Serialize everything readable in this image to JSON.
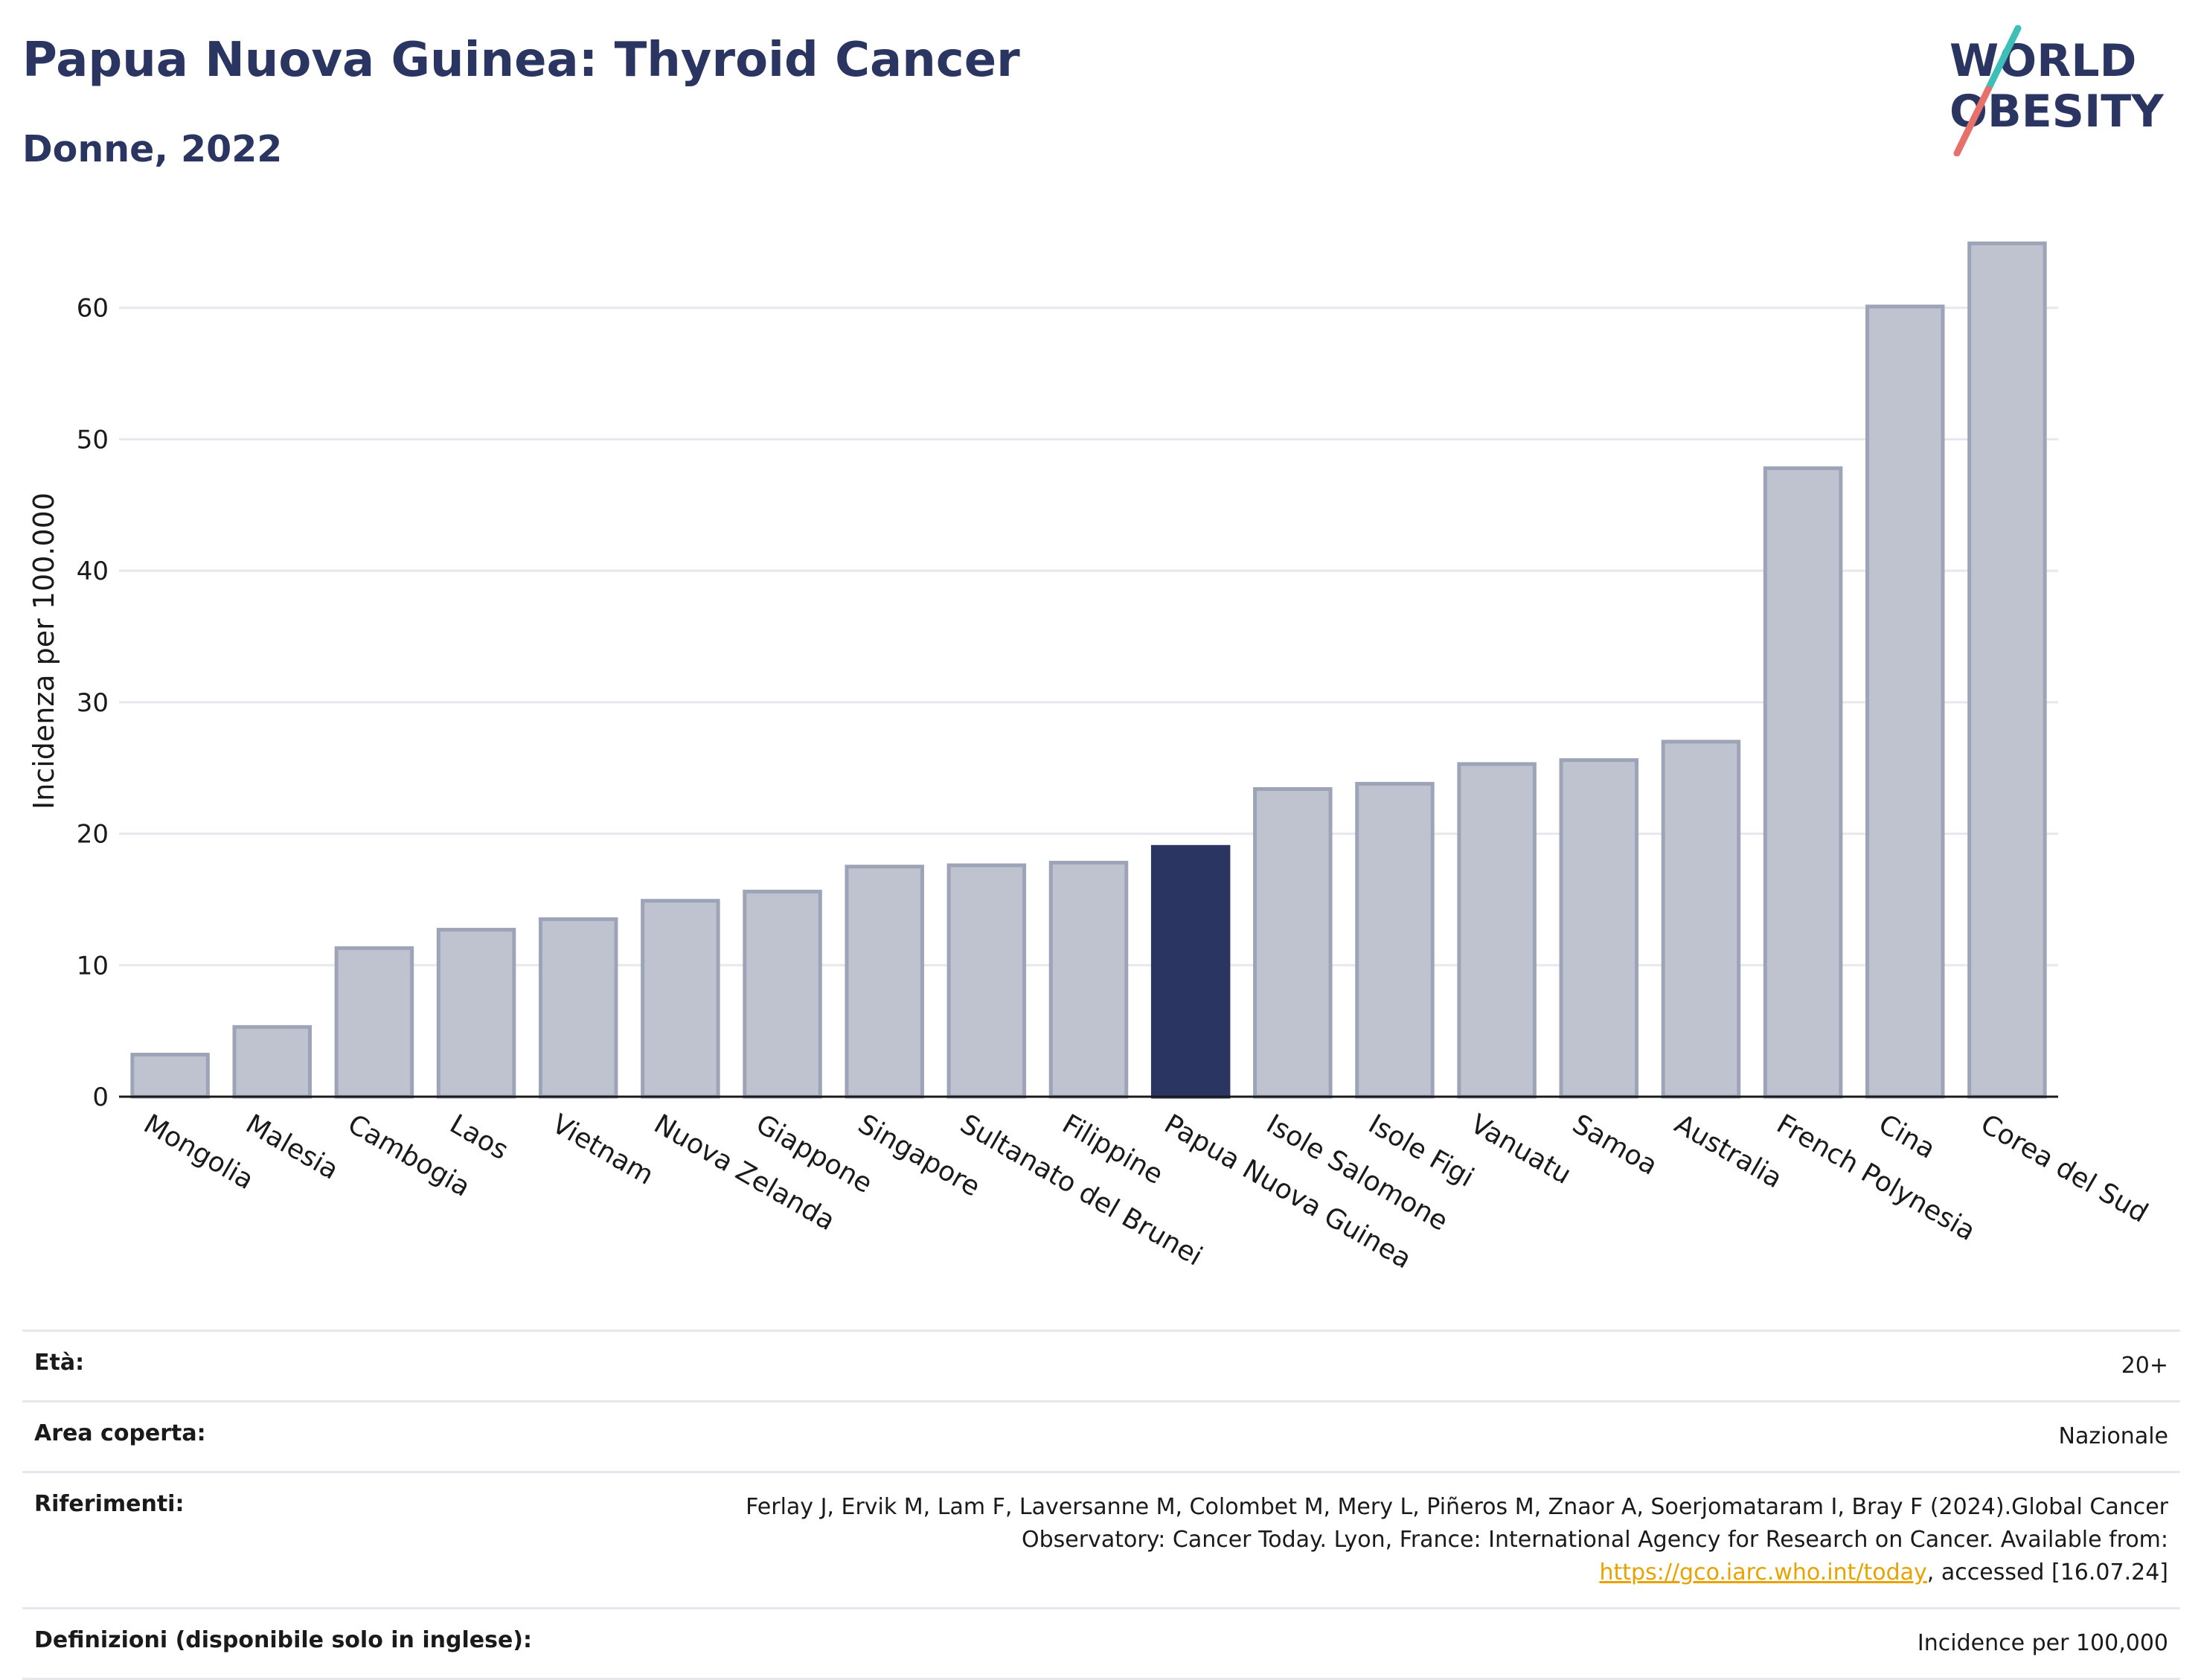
{
  "header": {
    "title": "Papua Nuova Guinea: Thyroid Cancer",
    "subtitle": "Donne, 2022"
  },
  "logo": {
    "line1": "WORLD",
    "line2": "OBESITY",
    "colors": {
      "text": "#2a3561",
      "slash_teal": "#3dbfb8",
      "slash_coral": "#e8706a"
    }
  },
  "colors": {
    "highlight_bar": "#2a3561",
    "other_bar_fill": "#bfc3cf",
    "other_bar_stroke": "#9ea4b8",
    "axis": "#1a1a1a",
    "grid": "#e6e8ee",
    "title": "#2a3561"
  },
  "chart_data": {
    "type": "bar",
    "title": "Papua Nuova Guinea: Thyroid Cancer",
    "subtitle": "Donne, 2022",
    "xlabel": "",
    "ylabel": "Incidenza per 100.000",
    "ylim": [
      0,
      67
    ],
    "yticks": [
      0,
      10,
      20,
      30,
      40,
      50,
      60
    ],
    "grid": true,
    "highlight": "Papua Nuova Guinea",
    "categories": [
      "Mongolia",
      "Malesia",
      "Cambogia",
      "Laos",
      "Vietnam",
      "Nuova Zelanda",
      "Giappone",
      "Singapore",
      "Sultanato del Brunei",
      "Filippine",
      "Papua Nuova Guinea",
      "Isole Salomone",
      "Isole Figi",
      "Vanuatu",
      "Samoa",
      "Australia",
      "French Polynesia",
      "Cina",
      "Corea del Sud"
    ],
    "values": [
      3.2,
      5.3,
      11.3,
      12.7,
      13.5,
      14.9,
      15.6,
      17.5,
      17.6,
      17.8,
      19.0,
      23.4,
      23.8,
      25.3,
      25.6,
      27.0,
      47.8,
      60.1,
      64.9
    ]
  },
  "meta": {
    "rows": [
      {
        "label": "Età:",
        "value": "20+"
      },
      {
        "label": "Area coperta:",
        "value": "Nazionale"
      },
      {
        "label": "Riferimenti:",
        "value_pre": "Ferlay J, Ervik M, Lam F, Laversanne M, Colombet M, Mery L, Piñeros M, Znaor A, Soerjomataram I, Bray F (2024).Global Cancer Observatory: Cancer Today. Lyon, France: International Agency for Research on Cancer. Available from: ",
        "link": "https://gco.iarc.who.int/today",
        "value_post": ", accessed [16.07.24]"
      },
      {
        "label": "Definizioni (disponibile solo in inglese):",
        "value": "Incidence per 100,000"
      }
    ]
  }
}
